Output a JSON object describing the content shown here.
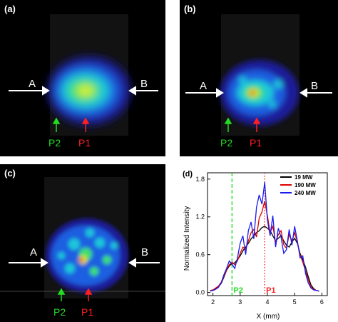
{
  "panels": [
    {
      "letter": "(a)",
      "left_label": "A",
      "right_label": "B",
      "p2": "P2",
      "p1": "P1"
    },
    {
      "letter": "(b)",
      "left_label": "A",
      "right_label": "B",
      "p2": "P2",
      "p1": "P1"
    },
    {
      "letter": "(c)",
      "left_label": "A",
      "right_label": "B",
      "p2": "P2",
      "p1": "P1"
    }
  ],
  "colors": {
    "arrow_white": "#ffffff",
    "p2_green": "#22dd22",
    "p1_red": "#ff2020",
    "series_19": "#000000",
    "series_190": "#dd0000",
    "series_240": "#1a1aee"
  },
  "chart_data": {
    "type": "line",
    "panel_letter": "(d)",
    "xlabel": "X (mm)",
    "ylabel": "Normalized Intensity",
    "xlim": [
      1.8,
      6.2
    ],
    "ylim": [
      -0.05,
      1.9
    ],
    "xticks": [
      2,
      3,
      4,
      5,
      6
    ],
    "yticks": [
      0.0,
      0.6,
      1.2,
      1.8
    ],
    "legend_position": "top-right",
    "markers": [
      {
        "label": "P2",
        "x": 2.7,
        "color": "#22dd22",
        "style": "dashed"
      },
      {
        "label": "P1",
        "x": 3.9,
        "color": "#ff2020",
        "style": "dotted"
      }
    ],
    "series": [
      {
        "name": "19 MW",
        "color": "#000000",
        "x": [
          1.9,
          2.0,
          2.1,
          2.2,
          2.3,
          2.4,
          2.5,
          2.6,
          2.7,
          2.8,
          2.9,
          3.0,
          3.1,
          3.2,
          3.3,
          3.4,
          3.5,
          3.6,
          3.7,
          3.8,
          3.9,
          4.0,
          4.1,
          4.2,
          4.3,
          4.4,
          4.5,
          4.6,
          4.7,
          4.8,
          4.9,
          5.0,
          5.1,
          5.2,
          5.3,
          5.4,
          5.5,
          5.6,
          5.7,
          5.8,
          5.9
        ],
        "y": [
          0.03,
          0.04,
          0.06,
          0.09,
          0.14,
          0.24,
          0.35,
          0.42,
          0.46,
          0.47,
          0.52,
          0.58,
          0.66,
          0.72,
          0.78,
          0.85,
          0.9,
          0.95,
          0.98,
          1.03,
          1.05,
          1.02,
          0.98,
          0.9,
          0.82,
          0.86,
          0.9,
          0.82,
          0.75,
          0.72,
          0.8,
          0.86,
          0.78,
          0.62,
          0.52,
          0.4,
          0.25,
          0.12,
          0.06,
          0.03,
          0.02
        ]
      },
      {
        "name": "190 MW",
        "color": "#dd0000",
        "x": [
          1.9,
          2.0,
          2.1,
          2.2,
          2.3,
          2.4,
          2.5,
          2.6,
          2.7,
          2.8,
          2.9,
          3.0,
          3.1,
          3.2,
          3.3,
          3.4,
          3.5,
          3.6,
          3.7,
          3.8,
          3.9,
          4.0,
          4.1,
          4.2,
          4.3,
          4.4,
          4.5,
          4.6,
          4.7,
          4.8,
          4.9,
          5.0,
          5.1,
          5.2,
          5.3,
          5.4,
          5.5,
          5.6,
          5.7,
          5.8,
          5.9
        ],
        "y": [
          0.03,
          0.04,
          0.07,
          0.1,
          0.16,
          0.26,
          0.36,
          0.44,
          0.48,
          0.44,
          0.5,
          0.62,
          0.72,
          0.68,
          0.82,
          0.95,
          1.0,
          0.88,
          1.18,
          1.28,
          1.45,
          1.22,
          0.95,
          1.05,
          0.8,
          0.92,
          0.98,
          0.76,
          0.7,
          0.92,
          0.82,
          0.95,
          0.8,
          0.6,
          0.48,
          0.34,
          0.2,
          0.09,
          0.05,
          0.03,
          0.02
        ]
      },
      {
        "name": "240 MW",
        "color": "#1a1aee",
        "x": [
          1.9,
          2.0,
          2.1,
          2.2,
          2.3,
          2.4,
          2.5,
          2.6,
          2.7,
          2.8,
          2.9,
          3.0,
          3.1,
          3.2,
          3.3,
          3.4,
          3.5,
          3.6,
          3.7,
          3.8,
          3.9,
          4.0,
          4.1,
          4.2,
          4.3,
          4.4,
          4.5,
          4.6,
          4.7,
          4.8,
          4.9,
          5.0,
          5.1,
          5.2,
          5.3,
          5.4,
          5.5,
          5.6,
          5.7,
          5.8,
          5.9
        ],
        "y": [
          0.02,
          0.03,
          0.05,
          0.08,
          0.15,
          0.28,
          0.38,
          0.5,
          0.45,
          0.38,
          0.55,
          0.78,
          0.9,
          0.6,
          0.98,
          1.12,
          0.85,
          1.35,
          1.55,
          1.4,
          1.75,
          1.15,
          0.9,
          1.22,
          0.72,
          1.02,
          0.88,
          0.62,
          0.68,
          1.0,
          0.75,
          1.05,
          0.82,
          0.55,
          0.58,
          0.3,
          0.15,
          0.07,
          0.04,
          0.03,
          0.02
        ]
      }
    ]
  }
}
